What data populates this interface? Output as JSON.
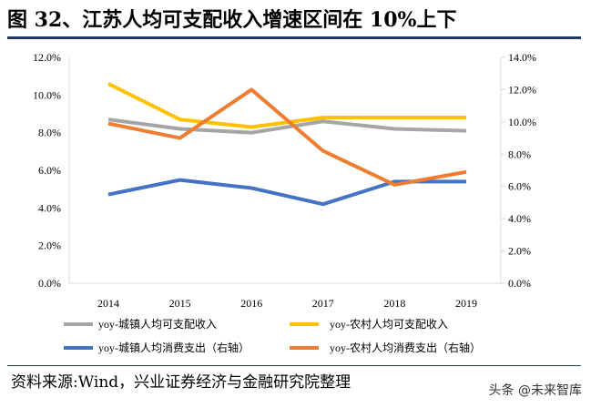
{
  "title": "图 32、江苏人均可支配收入增速区间在 10%上下",
  "source": "资料来源:Wind，兴业证券经济与金融研究院整理",
  "watermark": "头条 @未来智库",
  "chart_data": {
    "type": "line",
    "categories": [
      "2014",
      "2015",
      "2016",
      "2017",
      "2018",
      "2019"
    ],
    "y_left": {
      "range": [
        0,
        12
      ],
      "ticks": [
        "0.0%",
        "2.0%",
        "4.0%",
        "6.0%",
        "8.0%",
        "10.0%",
        "12.0%"
      ]
    },
    "y_right": {
      "range": [
        0,
        14
      ],
      "ticks": [
        "0.0%",
        "2.0%",
        "4.0%",
        "6.0%",
        "8.0%",
        "10.0%",
        "12.0%",
        "14.0%"
      ]
    },
    "grid": false,
    "legend": "bottom",
    "series": [
      {
        "name": "yoy-城镇人均可支配收入",
        "axis": "left",
        "color": "#a5a5a5",
        "values": [
          8.7,
          8.2,
          8.0,
          8.6,
          8.2,
          8.1
        ]
      },
      {
        "name": "yoy-农村人均可支配收入",
        "axis": "left",
        "color": "#ffc000",
        "values": [
          10.6,
          8.7,
          8.3,
          8.8,
          8.8,
          8.8
        ]
      },
      {
        "name": "yoy-城镇人均消费支出（右轴）",
        "axis": "right",
        "color": "#4472c4",
        "values": [
          5.5,
          6.4,
          5.9,
          4.9,
          6.3,
          6.3
        ]
      },
      {
        "name": "yoy-农村人均消费支出（右轴）",
        "axis": "right",
        "color": "#ed7d31",
        "values": [
          9.9,
          9.0,
          12.0,
          8.2,
          6.1,
          6.9
        ]
      }
    ]
  }
}
